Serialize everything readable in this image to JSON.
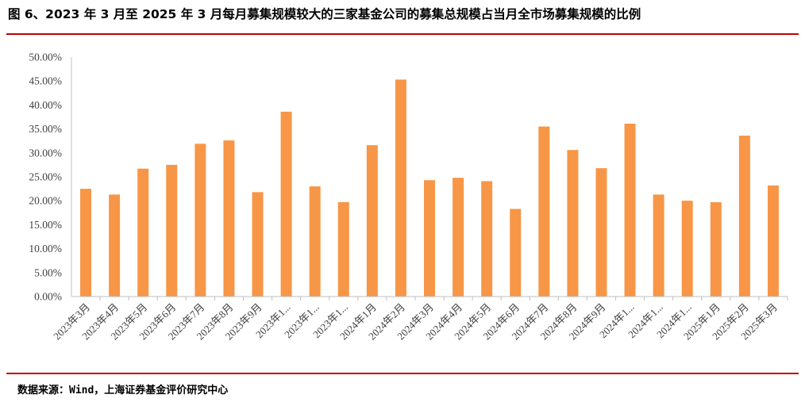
{
  "title": "图 6、2023 年 3 月至 2025 年 3 月每月募集规模较大的三家基金公司的募集总规模占当月全市场募集规模的比例",
  "source": "数据来源：Wind，上海证券基金评价研究中心",
  "colors": {
    "bar": "#F79646",
    "rule": "#C00000",
    "axis": "#bfbfbf",
    "text": "#404040"
  },
  "chart_data": {
    "type": "bar",
    "title": "",
    "xlabel": "",
    "ylabel": "",
    "ylim": [
      0,
      50
    ],
    "y_ticks": [
      "0.00%",
      "5.00%",
      "10.00%",
      "15.00%",
      "20.00%",
      "25.00%",
      "30.00%",
      "35.00%",
      "40.00%",
      "45.00%",
      "50.00%"
    ],
    "grid": false,
    "legend": "none",
    "categories": [
      "2023年3月",
      "2023年4月",
      "2023年5月",
      "2023年6月",
      "2023年7月",
      "2023年8月",
      "2023年9月",
      "2023年1...",
      "2023年1...",
      "2023年1...",
      "2024年1月",
      "2024年2月",
      "2024年3月",
      "2024年4月",
      "2024年5月",
      "2024年6月",
      "2024年7月",
      "2024年8月",
      "2024年9月",
      "2024年1...",
      "2024年1...",
      "2024年1...",
      "2025年1月",
      "2025年2月",
      "2025年3月"
    ],
    "values": [
      22.5,
      21.3,
      26.7,
      27.5,
      31.9,
      32.6,
      21.8,
      38.6,
      23.0,
      19.7,
      31.6,
      45.3,
      24.3,
      24.8,
      24.1,
      18.3,
      35.5,
      30.6,
      26.8,
      36.1,
      21.3,
      20.0,
      19.7,
      33.6,
      23.2
    ]
  }
}
